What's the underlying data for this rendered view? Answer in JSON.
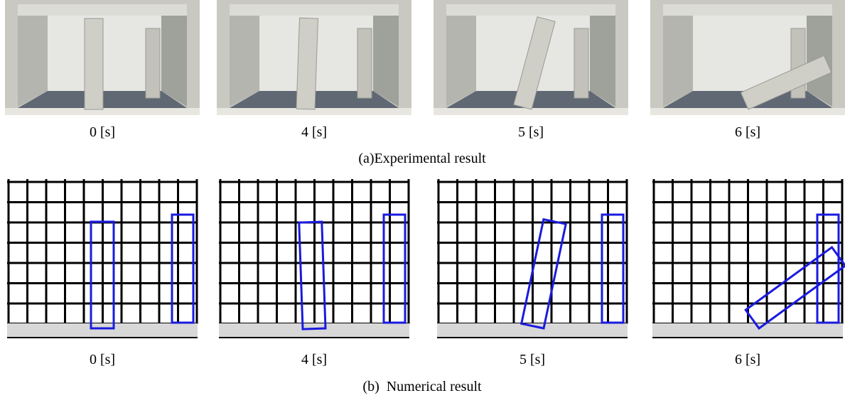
{
  "experimental": {
    "frames": [
      "0 [s]",
      "4 [s]",
      "5 [s]",
      "6 [s]"
    ],
    "caption": "(a)Experimental result"
  },
  "numerical": {
    "frames": [
      "0 [s]",
      "4 [s]",
      "5 [s]",
      "6 [s]"
    ],
    "caption": "(b)  Numerical result"
  }
}
